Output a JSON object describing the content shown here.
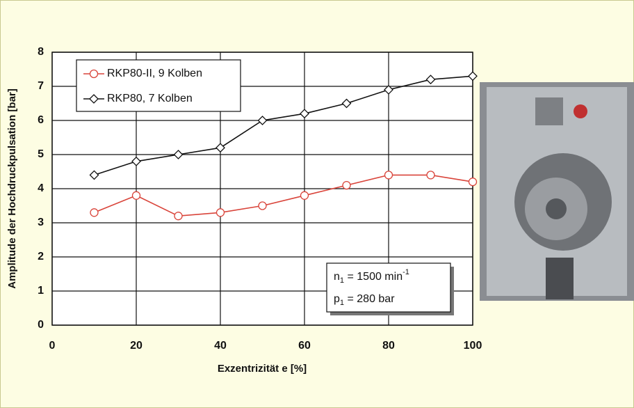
{
  "chart_data": {
    "type": "line",
    "x_label": "Exzentrizität e [%]",
    "y_label": "Amplitude der Hochdruckpulsation [bar]",
    "x": [
      10,
      20,
      30,
      40,
      50,
      60,
      70,
      80,
      90,
      100
    ],
    "series": [
      {
        "name": "RKP80-II, 9 Kolben",
        "color": "#d9443a",
        "marker": "circle",
        "values": [
          3.3,
          3.8,
          3.2,
          3.3,
          3.5,
          3.8,
          4.1,
          4.4,
          4.4,
          4.2
        ]
      },
      {
        "name": "RKP80, 7 Kolben",
        "color": "#111111",
        "marker": "diamond",
        "values": [
          4.4,
          4.8,
          5.0,
          5.2,
          6.0,
          6.2,
          6.5,
          6.9,
          7.2,
          7.3
        ]
      }
    ],
    "xlim": [
      0,
      100
    ],
    "xticks": [
      0,
      20,
      40,
      60,
      80,
      100
    ],
    "ylim": [
      0,
      8
    ],
    "yticks": [
      0,
      1,
      2,
      3,
      4,
      5,
      6,
      7,
      8
    ],
    "grid": true,
    "legend_position": "upper-left",
    "annotation": [
      {
        "symbol": "n",
        "subscript": "1",
        "text": " = 1500 min",
        "superscript": "-1"
      },
      {
        "symbol": "p",
        "subscript": "1",
        "text": " = 280 bar"
      }
    ]
  }
}
